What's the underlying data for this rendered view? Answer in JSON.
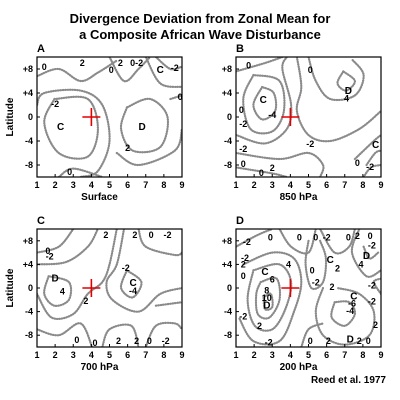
{
  "title_line1": "Divergence Deviation from Zonal Mean for",
  "title_line2": "a Composite African Wave Disturbance",
  "credit": "Reed et al. 1977",
  "colors": {
    "contour": "#8a8a8a",
    "frame": "#000000",
    "trough_marker": "#e00000"
  },
  "chart_data": [
    {
      "type": "contour",
      "panel_label": "A",
      "level": "Surface",
      "xlabel": "Surface",
      "ylabel": "Latitude",
      "xlim": [
        1,
        9
      ],
      "ylim": [
        -10,
        10
      ],
      "xticks": [
        "1",
        "2",
        "3",
        "4",
        "5",
        "6",
        "7",
        "8",
        "9"
      ],
      "yticks": [
        {
          "v": 8,
          "t": "+8"
        },
        {
          "v": 4,
          "t": "+4"
        },
        {
          "v": 0,
          "t": "0"
        },
        {
          "v": -4,
          "t": "-4"
        },
        {
          "v": -8,
          "t": "-8"
        }
      ],
      "trough_marker": [
        4,
        0
      ],
      "centers": [
        {
          "label": "C",
          "x": 2.3,
          "y": -1.5
        },
        {
          "label": "D",
          "x": 6.8,
          "y": -1.5
        },
        {
          "label": "C",
          "x": 7.8,
          "y": 8
        }
      ],
      "contour_labels": [
        {
          "text": "0",
          "x": 1.4,
          "y": 8.3
        },
        {
          "text": "2",
          "x": 3.5,
          "y": 9
        },
        {
          "text": "0",
          "x": 5.1,
          "y": 7.8
        },
        {
          "text": "2",
          "x": 5.6,
          "y": 9
        },
        {
          "text": "0-2",
          "x": 6.5,
          "y": 9
        },
        {
          "text": "-2",
          "x": 8.6,
          "y": 8.2
        },
        {
          "text": "0",
          "x": 8.9,
          "y": 3.3
        },
        {
          "text": "-2",
          "x": 2.0,
          "y": 2.2
        },
        {
          "text": "2",
          "x": 6.0,
          "y": -5.2
        },
        {
          "text": "0",
          "x": 2.8,
          "y": -9.2
        }
      ]
    },
    {
      "type": "contour",
      "panel_label": "B",
      "level": "850 hPa",
      "xlabel": "850 hPa",
      "ylabel": "",
      "xlim": [
        1,
        9
      ],
      "ylim": [
        -10,
        10
      ],
      "xticks": [
        "1",
        "2",
        "3",
        "4",
        "5",
        "6",
        "7",
        "8",
        "9"
      ],
      "yticks": [
        {
          "v": 8,
          "t": "+8"
        },
        {
          "v": 4,
          "t": "+4"
        },
        {
          "v": 0,
          "t": "0"
        },
        {
          "v": -4,
          "t": "-4"
        },
        {
          "v": -8,
          "t": "-8"
        }
      ],
      "trough_marker": [
        4,
        0
      ],
      "centers": [
        {
          "label": "C",
          "x": 2.5,
          "y": 3.0
        },
        {
          "label": "D",
          "x": 7.2,
          "y": 4.5
        },
        {
          "label": "C",
          "x": 8.7,
          "y": -4.5
        }
      ],
      "contour_labels": [
        {
          "text": "0",
          "x": 1.7,
          "y": 8.6
        },
        {
          "text": "0",
          "x": 5.1,
          "y": 7.8
        },
        {
          "text": "-4",
          "x": 3.0,
          "y": 0.3
        },
        {
          "text": "-2",
          "x": 1.4,
          "y": -1.2
        },
        {
          "text": "0",
          "x": 1.3,
          "y": 1.2
        },
        {
          "text": "4",
          "x": 7.1,
          "y": 3.1
        },
        {
          "text": "-2",
          "x": 1.4,
          "y": -5.3
        },
        {
          "text": "0",
          "x": 1.4,
          "y": -7.8
        },
        {
          "text": "-2",
          "x": 5.1,
          "y": -4.5
        },
        {
          "text": "2",
          "x": 3.0,
          "y": -8.5
        },
        {
          "text": "0",
          "x": 2.4,
          "y": -9.3
        },
        {
          "text": "0",
          "x": 7.7,
          "y": -7.7
        },
        {
          "text": "-2",
          "x": 8.4,
          "y": -8.3
        }
      ]
    },
    {
      "type": "contour",
      "panel_label": "C",
      "level": "700 hPa",
      "xlabel": "700 hPa",
      "ylabel": "Latitude",
      "xlim": [
        1,
        9
      ],
      "ylim": [
        -10,
        10
      ],
      "xticks": [
        "1",
        "2",
        "3",
        "4",
        "5",
        "6",
        "7",
        "8",
        "9"
      ],
      "yticks": [
        {
          "v": 8,
          "t": "+8"
        },
        {
          "v": 4,
          "t": "+4"
        },
        {
          "v": 0,
          "t": "0"
        },
        {
          "v": -4,
          "t": "-4"
        },
        {
          "v": -8,
          "t": "-8"
        }
      ],
      "trough_marker": [
        4,
        0
      ],
      "centers": [
        {
          "label": "D",
          "x": 2.0,
          "y": 1.8
        },
        {
          "label": "C",
          "x": 6.3,
          "y": 1.0
        }
      ],
      "contour_labels": [
        {
          "text": "0",
          "x": 1.6,
          "y": 6.3
        },
        {
          "text": "-2",
          "x": 1.7,
          "y": 5.3
        },
        {
          "text": "2",
          "x": 4.8,
          "y": 9.0
        },
        {
          "text": "2",
          "x": 6.4,
          "y": 9.0
        },
        {
          "text": "0",
          "x": 7.3,
          "y": 9.0
        },
        {
          "text": "-2",
          "x": 8.2,
          "y": 9.0
        },
        {
          "text": "-2",
          "x": 5.9,
          "y": 3.4
        },
        {
          "text": "-4",
          "x": 6.3,
          "y": -0.5
        },
        {
          "text": "4",
          "x": 2.4,
          "y": -0.6
        },
        {
          "text": "2",
          "x": 3.7,
          "y": -2.2
        },
        {
          "text": "0",
          "x": 3.2,
          "y": -8.8
        },
        {
          "text": "0",
          "x": 4.2,
          "y": -9.3
        },
        {
          "text": "2",
          "x": 5.5,
          "y": -9.0
        },
        {
          "text": "2",
          "x": 6.5,
          "y": -9.0
        },
        {
          "text": "0",
          "x": 7.2,
          "y": -9.0
        },
        {
          "text": "-2",
          "x": 8.1,
          "y": -9.0
        }
      ]
    },
    {
      "type": "contour",
      "panel_label": "D",
      "level": "200 hPa",
      "xlabel": "200 hPa",
      "ylabel": "",
      "xlim": [
        1,
        9
      ],
      "ylim": [
        -10,
        10
      ],
      "xticks": [
        "1",
        "2",
        "3",
        "4",
        "5",
        "6",
        "7",
        "8",
        "9"
      ],
      "yticks": [
        {
          "v": 8,
          "t": "+8"
        },
        {
          "v": 4,
          "t": "+4"
        },
        {
          "v": 0,
          "t": "0"
        },
        {
          "v": -4,
          "t": "-4"
        },
        {
          "v": -8,
          "t": "-8"
        }
      ],
      "trough_marker": [
        4,
        0
      ],
      "centers": [
        {
          "label": "C",
          "x": 2.6,
          "y": 2.9
        },
        {
          "label": "D",
          "x": 2.7,
          "y": -2.8
        },
        {
          "label": "C",
          "x": 6.2,
          "y": 4.9
        },
        {
          "label": "D",
          "x": 8.2,
          "y": 5.6
        },
        {
          "label": "C",
          "x": 7.5,
          "y": -1.3
        },
        {
          "label": "D",
          "x": 7.3,
          "y": -8.6
        }
      ],
      "contour_labels": [
        {
          "text": "-2",
          "x": 1.6,
          "y": 7.8
        },
        {
          "text": "0",
          "x": 2.9,
          "y": 8.6
        },
        {
          "text": "0",
          "x": 4.5,
          "y": 8.6
        },
        {
          "text": "0",
          "x": 5.4,
          "y": 8.6
        },
        {
          "text": "-2",
          "x": 6.0,
          "y": 8.6
        },
        {
          "text": "0",
          "x": 7.2,
          "y": 8.6
        },
        {
          "text": "2",
          "x": 7.7,
          "y": 8.8
        },
        {
          "text": "0",
          "x": 8.4,
          "y": 8.8
        },
        {
          "text": "2",
          "x": 1.4,
          "y": 4.0
        },
        {
          "text": "-2",
          "x": 1.5,
          "y": 5.1
        },
        {
          "text": "0",
          "x": 1.4,
          "y": 2.0
        },
        {
          "text": "6",
          "x": 3.0,
          "y": 1.4
        },
        {
          "text": "4",
          "x": 3.9,
          "y": 4.0
        },
        {
          "text": "8",
          "x": 2.7,
          "y": -0.4
        },
        {
          "text": "10",
          "x": 2.7,
          "y": -1.7
        },
        {
          "text": "-2",
          "x": 1.4,
          "y": -4.8
        },
        {
          "text": "2",
          "x": 2.3,
          "y": -6.4
        },
        {
          "text": "-2",
          "x": 2.8,
          "y": -9.2
        },
        {
          "text": "0",
          "x": 5.1,
          "y": -9.0
        },
        {
          "text": "2",
          "x": 6.1,
          "y": -9.0
        },
        {
          "text": "2",
          "x": 7.8,
          "y": -9.0
        },
        {
          "text": "0",
          "x": 8.3,
          "y": -9.0
        },
        {
          "text": "-2",
          "x": 5.4,
          "y": 0.9
        },
        {
          "text": "2",
          "x": 6.3,
          "y": 0.2
        },
        {
          "text": "-6",
          "x": 7.4,
          "y": -2.6
        },
        {
          "text": "-4",
          "x": 7.3,
          "y": -3.9
        },
        {
          "text": "-2",
          "x": 8.5,
          "y": -2.3
        },
        {
          "text": "2",
          "x": 8.7,
          "y": -6.3
        },
        {
          "text": "-2",
          "x": 8.5,
          "y": 0.4
        },
        {
          "text": "4",
          "x": 7.9,
          "y": 4.0
        },
        {
          "text": "-2",
          "x": 8.5,
          "y": 7.2
        },
        {
          "text": "0",
          "x": 5.2,
          "y": 3.0
        },
        {
          "text": "2",
          "x": 6.6,
          "y": 3.3
        }
      ]
    }
  ]
}
